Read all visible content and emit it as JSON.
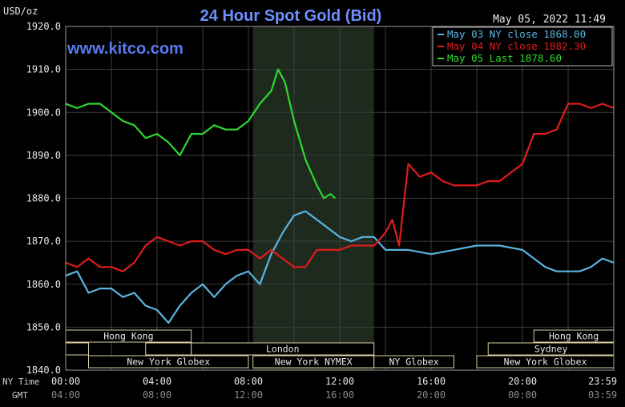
{
  "chart_data": {
    "type": "line",
    "title": "24 Hour Spot Gold (Bid)",
    "timestamp": "May 05, 2022 11:49",
    "watermark": "www.kitco.com",
    "unit_label": "USD/oz",
    "ylim": [
      1840,
      1920
    ],
    "y_ticks": [
      "1920.0",
      "1910.0",
      "1900.0",
      "1890.0",
      "1880.0",
      "1870.0",
      "1860.0",
      "1850.0",
      "1840.0"
    ],
    "x_row_label_ny": "NY Time",
    "x_row_label_gmt": "GMT",
    "x_ticks_ny": [
      "00:00",
      "04:00",
      "08:00",
      "12:00",
      "16:00",
      "20:00",
      "23:59"
    ],
    "x_ticks_gmt": [
      "04:00",
      "08:00",
      "12:00",
      "16:00",
      "20:00",
      "00:00",
      "03:59"
    ],
    "x_tick_hours": [
      0,
      4,
      8,
      12,
      16,
      20,
      23.98
    ],
    "shaded_hours": [
      8.2,
      13.5
    ],
    "sessions": [
      {
        "label": "Hong Kong",
        "row": 0,
        "start": 0,
        "end": 5.5
      },
      {
        "label": "",
        "row": 1,
        "start": 0,
        "end": 1.0
      },
      {
        "label": "",
        "row": 1,
        "start": 3.5,
        "end": 5.5
      },
      {
        "label": "London",
        "row": 1,
        "start": 5.5,
        "end": 13.5
      },
      {
        "label": "New York Globex",
        "row": 2,
        "start": 1.0,
        "end": 8.0
      },
      {
        "label": "New York NYMEX",
        "row": 2,
        "start": 8.2,
        "end": 13.5
      },
      {
        "label": "NY Globex",
        "row": 2,
        "start": 13.5,
        "end": 17.0
      },
      {
        "label": "Hong Kong",
        "row": 0,
        "start": 20.5,
        "end": 24
      },
      {
        "label": "Sydney",
        "row": 1,
        "start": 18.5,
        "end": 24
      },
      {
        "label": "New York Globex",
        "row": 2,
        "start": 18.0,
        "end": 24
      }
    ],
    "legend_position": "top-right",
    "series": [
      {
        "name": "May 03 NY close 1868.00",
        "color": "#5ab4e0",
        "x": [
          0,
          0.5,
          1.0,
          1.5,
          2.0,
          2.5,
          3.0,
          3.5,
          4.0,
          4.5,
          5.0,
          5.5,
          6.0,
          6.5,
          7.0,
          7.5,
          8.0,
          8.5,
          9.0,
          9.5,
          10.0,
          10.5,
          11.0,
          11.5,
          12.0,
          12.5,
          13.0,
          13.5,
          14.0,
          14.5,
          15.0,
          16.0,
          17.0,
          18.0,
          19.0,
          20.0,
          20.5,
          21.0,
          21.5,
          22.0,
          22.5,
          23.0,
          23.5,
          24.0
        ],
        "y": [
          1862,
          1863,
          1858,
          1859,
          1859,
          1857,
          1858,
          1855,
          1854,
          1851,
          1855,
          1858,
          1860,
          1857,
          1860,
          1862,
          1863,
          1860,
          1867,
          1872,
          1876,
          1877,
          1875,
          1873,
          1871,
          1870,
          1871,
          1871,
          1868,
          1868,
          1868,
          1867,
          1868,
          1869,
          1869,
          1868,
          1866,
          1864,
          1863,
          1863,
          1863,
          1864,
          1866,
          1865
        ]
      },
      {
        "name": "May 04 NY close 1882.30",
        "color": "#e01c1c",
        "x": [
          0,
          0.5,
          1.0,
          1.5,
          2.0,
          2.5,
          3.0,
          3.5,
          4.0,
          4.5,
          5.0,
          5.5,
          6.0,
          6.5,
          7.0,
          7.5,
          8.0,
          8.5,
          9.0,
          9.5,
          10.0,
          10.5,
          11.0,
          11.5,
          12.0,
          12.5,
          13.0,
          13.5,
          14.0,
          14.3,
          14.6,
          15.0,
          15.5,
          16.0,
          16.5,
          17.0,
          17.5,
          18.0,
          18.5,
          19.0,
          19.5,
          20.0,
          20.5,
          21.0,
          21.5,
          22.0,
          22.5,
          23.0,
          23.5,
          24.0
        ],
        "y": [
          1865,
          1864,
          1866,
          1864,
          1864,
          1863,
          1865,
          1869,
          1871,
          1870,
          1869,
          1870,
          1870,
          1868,
          1867,
          1868,
          1868,
          1866,
          1868,
          1866,
          1864,
          1864,
          1868,
          1868,
          1868,
          1869,
          1869,
          1869,
          1872,
          1875,
          1869,
          1888,
          1885,
          1886,
          1884,
          1883,
          1883,
          1883,
          1884,
          1884,
          1886,
          1888,
          1895,
          1895,
          1896,
          1902,
          1902,
          1901,
          1902,
          1901
        ]
      },
      {
        "name": "May 05 Last 1878.60",
        "color": "#2ed82e",
        "x": [
          0,
          0.5,
          1.0,
          1.5,
          2.0,
          2.5,
          3.0,
          3.5,
          4.0,
          4.5,
          5.0,
          5.5,
          6.0,
          6.5,
          7.0,
          7.5,
          8.0,
          8.5,
          9.0,
          9.3,
          9.6,
          10.0,
          10.5,
          11.0,
          11.3,
          11.6,
          11.8
        ],
        "y": [
          1902,
          1901,
          1902,
          1902,
          1900,
          1898,
          1897,
          1894,
          1895,
          1893,
          1890,
          1895,
          1895,
          1897,
          1896,
          1896,
          1898,
          1902,
          1905,
          1910,
          1907,
          1898,
          1889,
          1883,
          1880,
          1881,
          1880
        ]
      }
    ]
  }
}
